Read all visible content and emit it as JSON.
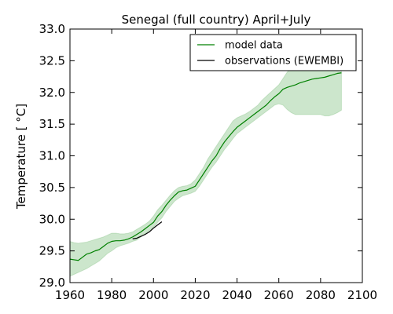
{
  "chart_data": {
    "type": "line",
    "title": "Senegal (full country) April+July",
    "xlabel": "",
    "ylabel": "Temperature [ °C]",
    "xlim": [
      1960,
      2100
    ],
    "ylim": [
      29.0,
      33.0
    ],
    "x_ticks": [
      1960,
      1980,
      2000,
      2020,
      2040,
      2060,
      2080,
      2100
    ],
    "x_tick_labels": [
      "1960",
      "1980",
      "2000",
      "2020",
      "2040",
      "2060",
      "2080",
      "2100"
    ],
    "y_ticks": [
      29.0,
      29.5,
      30.0,
      30.5,
      31.0,
      31.5,
      32.0,
      32.5,
      33.0
    ],
    "y_tick_labels": [
      "29.0",
      "29.5",
      "30.0",
      "30.5",
      "31.0",
      "31.5",
      "32.0",
      "32.5",
      "33.0"
    ],
    "grid": false,
    "legend": "top-right",
    "series": [
      {
        "name": "model data",
        "color": "#008000",
        "x": [
          1960,
          1962,
          1964,
          1966,
          1968,
          1970,
          1972,
          1974,
          1976,
          1978,
          1980,
          1982,
          1984,
          1986,
          1988,
          1990,
          1992,
          1994,
          1996,
          1998,
          2000,
          2002,
          2004,
          2006,
          2008,
          2010,
          2012,
          2014,
          2016,
          2018,
          2020,
          2022,
          2024,
          2026,
          2028,
          2030,
          2032,
          2034,
          2036,
          2038,
          2040,
          2042,
          2044,
          2046,
          2048,
          2050,
          2052,
          2054,
          2056,
          2058,
          2060,
          2062,
          2064,
          2066,
          2068,
          2070,
          2072,
          2074,
          2076,
          2078,
          2080,
          2082,
          2084,
          2086,
          2088,
          2090
        ],
        "y": [
          29.37,
          29.36,
          29.35,
          29.4,
          29.45,
          29.47,
          29.5,
          29.52,
          29.57,
          29.62,
          29.65,
          29.66,
          29.66,
          29.67,
          29.69,
          29.72,
          29.76,
          29.8,
          29.85,
          29.9,
          29.95,
          30.05,
          30.12,
          30.22,
          30.3,
          30.37,
          30.43,
          30.45,
          30.46,
          30.49,
          30.52,
          30.62,
          30.72,
          30.82,
          30.92,
          31.0,
          31.12,
          31.22,
          31.3,
          31.38,
          31.45,
          31.5,
          31.55,
          31.6,
          31.65,
          31.7,
          31.75,
          31.8,
          31.87,
          31.93,
          31.98,
          32.05,
          32.08,
          32.1,
          32.12,
          32.15,
          32.17,
          32.19,
          32.21,
          32.22,
          32.23,
          32.24,
          32.26,
          32.28,
          32.3,
          32.31
        ],
        "range_low": [
          29.1,
          29.13,
          29.16,
          29.19,
          29.22,
          29.26,
          29.3,
          29.34,
          29.4,
          29.46,
          29.5,
          29.55,
          29.58,
          29.6,
          29.62,
          29.65,
          29.67,
          29.72,
          29.77,
          29.82,
          29.87,
          29.95,
          30.02,
          30.12,
          30.2,
          30.28,
          30.33,
          30.37,
          30.39,
          30.41,
          30.44,
          30.52,
          30.62,
          30.72,
          30.82,
          30.9,
          31.0,
          31.1,
          31.18,
          31.27,
          31.35,
          31.4,
          31.45,
          31.5,
          31.55,
          31.6,
          31.65,
          31.7,
          31.75,
          31.8,
          31.82,
          31.8,
          31.73,
          31.68,
          31.65,
          31.65,
          31.65,
          31.65,
          31.65,
          31.65,
          31.65,
          31.63,
          31.63,
          31.65,
          31.68,
          31.72
        ],
        "range_high": [
          29.65,
          29.63,
          29.62,
          29.63,
          29.64,
          29.66,
          29.68,
          29.7,
          29.72,
          29.75,
          29.78,
          29.78,
          29.77,
          29.77,
          29.78,
          29.8,
          29.84,
          29.88,
          29.92,
          29.97,
          30.05,
          30.15,
          30.22,
          30.3,
          30.38,
          30.45,
          30.5,
          30.52,
          30.53,
          30.56,
          30.62,
          30.72,
          30.82,
          30.95,
          31.05,
          31.15,
          31.25,
          31.35,
          31.45,
          31.55,
          31.6,
          31.63,
          31.66,
          31.7,
          31.75,
          31.8,
          31.88,
          31.94,
          32.0,
          32.06,
          32.12,
          32.22,
          32.32,
          32.38,
          32.42,
          32.45,
          32.48,
          32.5,
          32.55,
          32.6,
          32.63,
          32.65,
          32.68,
          32.71,
          32.74,
          32.76
        ]
      },
      {
        "name": "observations (EWEMBI)",
        "color": "#000000",
        "x": [
          1990,
          1992,
          1994,
          1996,
          1998,
          2000,
          2002,
          2004
        ],
        "y": [
          29.69,
          29.7,
          29.73,
          29.76,
          29.8,
          29.86,
          29.91,
          29.96
        ]
      }
    ]
  }
}
